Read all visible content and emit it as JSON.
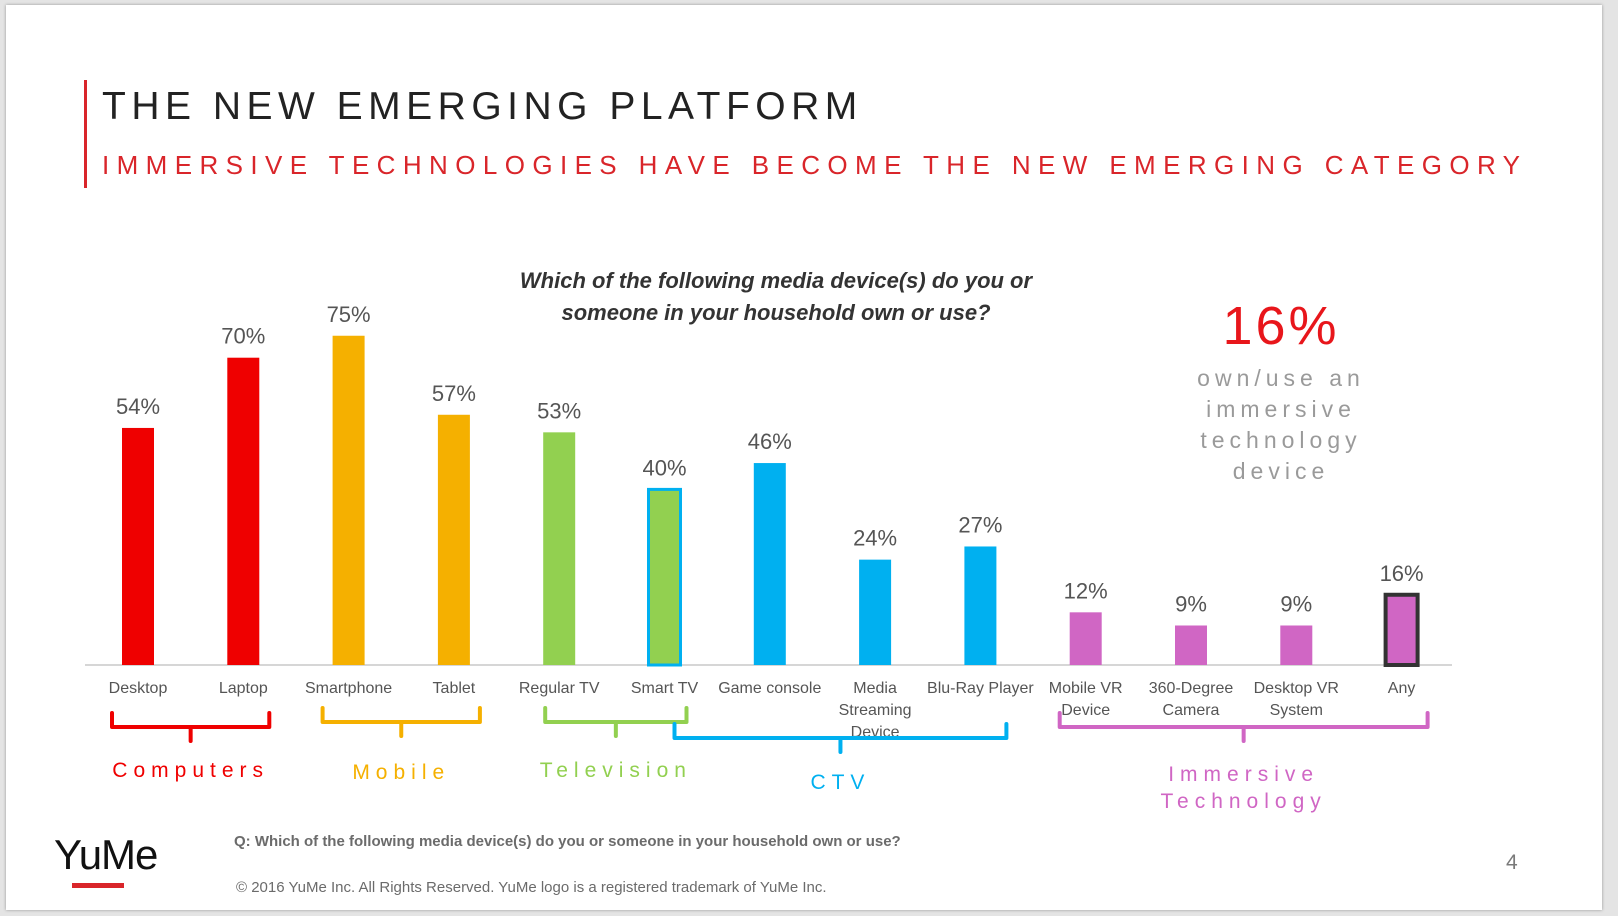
{
  "title": "THE NEW EMERGING PLATFORM",
  "subtitle": "IMMERSIVE TECHNOLOGIES HAVE BECOME THE NEW EMERGING CATEGORY",
  "callout": {
    "value": "16%",
    "text_lines": [
      "own/use an",
      "immersive",
      "technology",
      "device"
    ]
  },
  "footnote": "Q: Which of the following media device(s) do you or someone in your household own or use?",
  "copyright": "© 2016 YuMe Inc. All Rights Reserved. YuMe logo is a registered trademark of YuMe Inc.",
  "page_number": "4",
  "logo_text": "YuMe",
  "colors": {
    "computers": "#ef0000",
    "mobile": "#f5b000",
    "television": "#92d050",
    "ctv": "#00b0f0",
    "immersive": "#d066c4",
    "title_red": "#d9252a"
  },
  "chart_data": {
    "type": "bar",
    "title_lines": [
      "Which of the following media device(s) do you or",
      "someone in your household own or use?"
    ],
    "categories": [
      [
        "Desktop"
      ],
      [
        "Laptop"
      ],
      [
        "Smartphone"
      ],
      [
        "Tablet"
      ],
      [
        "Regular TV"
      ],
      [
        "Smart TV"
      ],
      [
        "Game console"
      ],
      [
        "Media",
        "Streaming",
        "Device"
      ],
      [
        "Blu-Ray Player"
      ],
      [
        "Mobile VR",
        "Device"
      ],
      [
        "360-Degree",
        "Camera"
      ],
      [
        "Desktop VR",
        "System"
      ],
      [
        "Any"
      ]
    ],
    "values": [
      54,
      70,
      75,
      57,
      53,
      40,
      46,
      24,
      27,
      12,
      9,
      9,
      16
    ],
    "value_labels": [
      "54%",
      "70%",
      "75%",
      "57%",
      "53%",
      "40%",
      "46%",
      "24%",
      "27%",
      "12%",
      "9%",
      "9%",
      "16%"
    ],
    "bar_groups": [
      "computers",
      "computers",
      "mobile",
      "mobile",
      "television",
      "television",
      "ctv",
      "ctv",
      "ctv",
      "immersive",
      "immersive",
      "immersive",
      "immersive"
    ],
    "highlighted": [
      false,
      false,
      false,
      false,
      false,
      true,
      false,
      false,
      false,
      false,
      false,
      false,
      true
    ],
    "highlight_outline": [
      "",
      "",
      "",
      "",
      "",
      "#00b0f0",
      "",
      "",
      "",
      "",
      "",
      "",
      "#333333"
    ],
    "ylim": [
      0,
      80
    ],
    "groups": [
      {
        "key": "computers",
        "label": "Computers",
        "from": 0,
        "to": 1,
        "color": "#ef0000"
      },
      {
        "key": "mobile",
        "label": "Mobile",
        "from": 2,
        "to": 3,
        "color": "#f5b000"
      },
      {
        "key": "television",
        "label": "Television",
        "from": 4,
        "to": 5,
        "color": "#92d050"
      },
      {
        "key": "ctv",
        "label": "CTV",
        "from": 5,
        "to": 8,
        "color": "#00b0f0"
      },
      {
        "key": "immersive",
        "label": "Immersive Technology",
        "from": 9,
        "to": 12,
        "color": "#d066c4"
      }
    ]
  }
}
